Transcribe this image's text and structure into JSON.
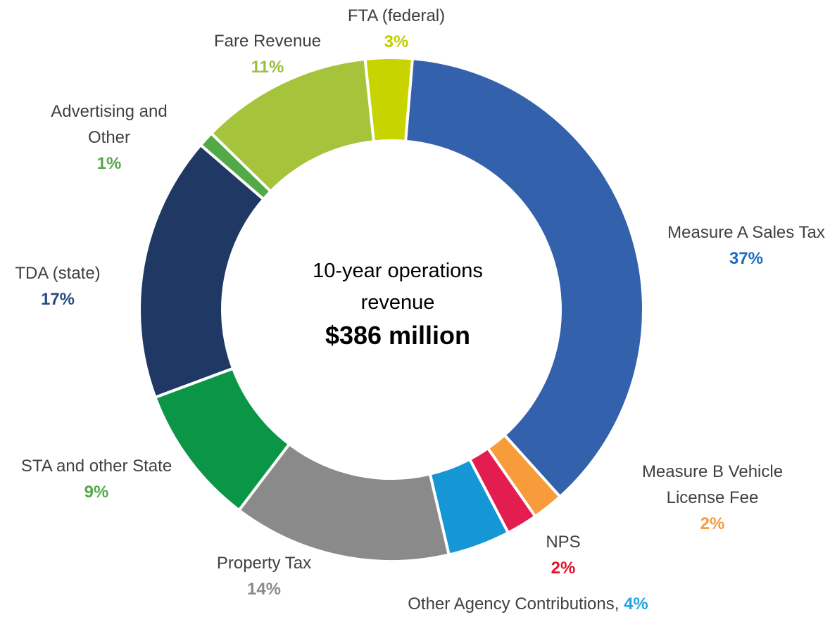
{
  "chart_data": {
    "type": "donut",
    "annotations": [
      "10-year operations revenue",
      "$386 million"
    ],
    "categories": [
      "Measure A Sales Tax",
      "Measure B Vehicle License Fee",
      "NPS",
      "Other Agency Contributions,",
      "Property Tax",
      "STA and other State",
      "TDA (state)",
      "Advertising and Other",
      "Fare Revenue",
      "FTA (federal)"
    ],
    "values": [
      37,
      2,
      2,
      4,
      14,
      9,
      17,
      1,
      11,
      3
    ],
    "value_labels": [
      "37%",
      "2%",
      "2%",
      "4%",
      "14%",
      "9%",
      "17%",
      "1%",
      "11%",
      "3%"
    ],
    "colors": [
      "#3461ab",
      "#f79b3b",
      "#e31d4f",
      "#1597d6",
      "#8a8a8a",
      "#0b9647",
      "#1f3864",
      "#53a847",
      "#a5c43b",
      "#c8d400"
    ],
    "label_colors": [
      "#1a6fc0",
      "#f79b3b",
      "#e8102a",
      "#1fa6e0",
      "#8a8a8a",
      "#55a84a",
      "#2a4a80",
      "#55a84a",
      "#98c23c",
      "#c2cc00"
    ]
  }
}
